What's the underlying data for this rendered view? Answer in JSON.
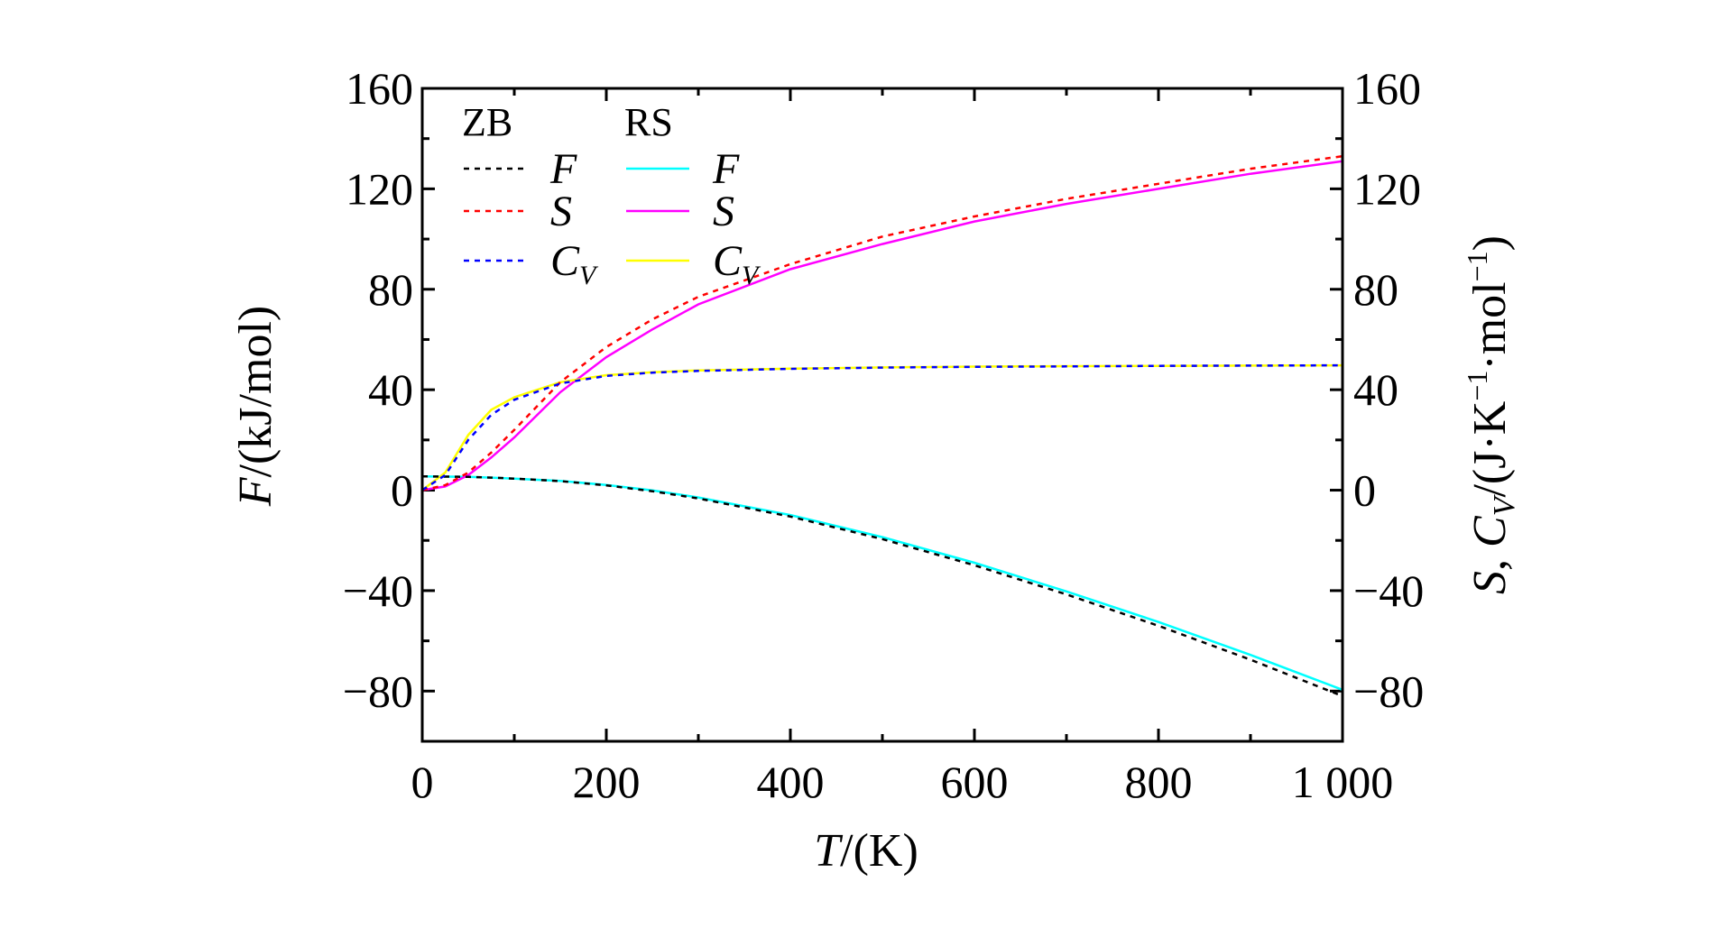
{
  "chart_data": {
    "type": "line",
    "xlabel": "T/(K)",
    "ylabel_left": "F/(kJ/mol)",
    "ylabel_right": "S, C_V/(J·K^-1·mol^-1)",
    "xlim": [
      0,
      1000
    ],
    "ylim": [
      -100,
      160
    ],
    "x_ticks": [
      0,
      200,
      400,
      600,
      800,
      1000
    ],
    "x_tick_labels": [
      "0",
      "200",
      "400",
      "600",
      "800",
      "1 000"
    ],
    "y_ticks": [
      -80,
      -40,
      0,
      40,
      80,
      120,
      160
    ],
    "y_tick_labels": [
      "−80",
      "−40",
      "0",
      "40",
      "80",
      "120",
      "160"
    ],
    "legend": {
      "position": "top-left",
      "groups": [
        "ZB",
        "RS"
      ]
    },
    "x": [
      0,
      25,
      50,
      75,
      100,
      150,
      200,
      250,
      300,
      400,
      500,
      600,
      700,
      800,
      900,
      1000
    ],
    "series": [
      {
        "group": "ZB",
        "name": "F",
        "subscript": "",
        "color": "#000000",
        "dash": true,
        "values": [
          5.5,
          5.4,
          5.3,
          5.0,
          4.6,
          3.6,
          1.9,
          -0.4,
          -3.3,
          -10.5,
          -19.5,
          -29.9,
          -41.5,
          -54.0,
          -67.5,
          -82.0
        ]
      },
      {
        "group": "ZB",
        "name": "S",
        "subscript": "",
        "color": "#ff0000",
        "dash": true,
        "values": [
          0,
          2,
          7,
          15,
          24,
          43,
          57,
          68,
          77,
          90,
          101,
          109,
          116,
          122,
          128,
          133
        ]
      },
      {
        "group": "ZB",
        "name": "C",
        "subscript": "V",
        "color": "#0000ff",
        "dash": true,
        "values": [
          0,
          6,
          20,
          30,
          36,
          42.5,
          45.5,
          46.8,
          47.5,
          48.3,
          48.8,
          49.1,
          49.3,
          49.5,
          49.6,
          49.7
        ]
      },
      {
        "group": "RS",
        "name": "F",
        "subscript": "",
        "color": "#00ffff",
        "dash": false,
        "values": [
          5.5,
          5.4,
          5.3,
          5.0,
          4.6,
          3.7,
          2.1,
          -0.1,
          -2.9,
          -9.9,
          -18.7,
          -28.9,
          -40.3,
          -52.5,
          -65.6,
          -79.5
        ]
      },
      {
        "group": "RS",
        "name": "S",
        "subscript": "",
        "color": "#ff00ff",
        "dash": false,
        "values": [
          0,
          1.5,
          6,
          13,
          21,
          39,
          53,
          64,
          74,
          88,
          98,
          107,
          114,
          120,
          126,
          131
        ]
      },
      {
        "group": "RS",
        "name": "C",
        "subscript": "V",
        "color": "#ffff00",
        "dash": false,
        "values": [
          0,
          7,
          22,
          32,
          37,
          43,
          45.8,
          47,
          47.7,
          48.4,
          48.9,
          49.2,
          49.4,
          49.5,
          49.6,
          49.7
        ]
      }
    ]
  }
}
